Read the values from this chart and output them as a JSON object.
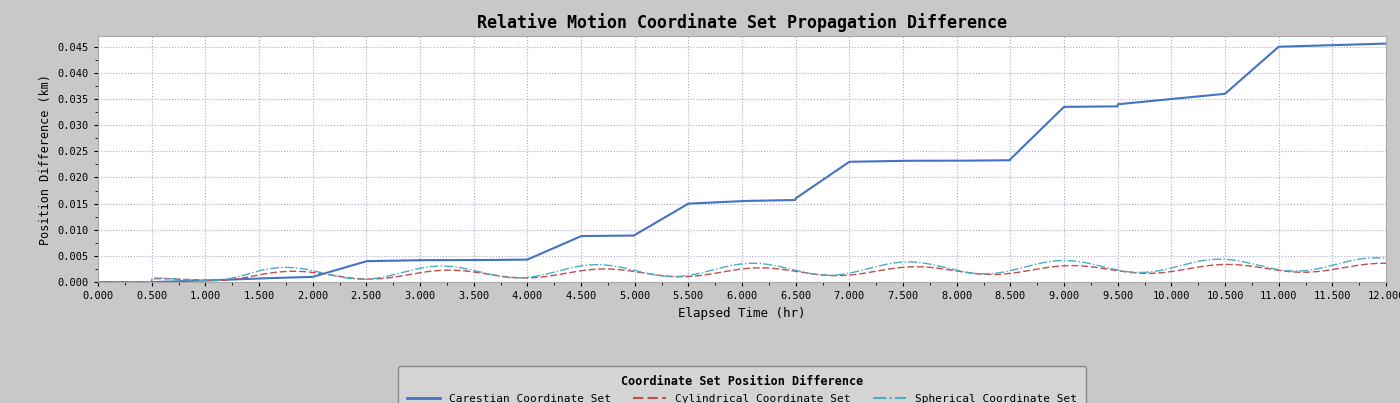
{
  "title": "Relative Motion Coordinate Set Propagation Difference",
  "xlabel": "Elapsed Time (hr)",
  "ylabel": "Position Difference (km)",
  "xlim": [
    0.0,
    12.0
  ],
  "ylim": [
    0.0,
    0.047
  ],
  "yticks": [
    0.0,
    0.005,
    0.01,
    0.015,
    0.02,
    0.025,
    0.03,
    0.035,
    0.04,
    0.045
  ],
  "xticks": [
    0.0,
    0.5,
    1.0,
    1.5,
    2.0,
    2.5,
    3.0,
    3.5,
    4.0,
    4.5,
    5.0,
    5.5,
    6.0,
    6.5,
    7.0,
    7.5,
    8.0,
    8.5,
    9.0,
    9.5,
    10.0,
    10.5,
    11.0,
    11.5,
    12.0
  ],
  "background_color": "#c8c8c8",
  "plot_bg_color": "#ffffff",
  "grid_color": "#aaaacc",
  "cartesian_color": "#4472c4",
  "cylindrical_color": "#c0504d",
  "spherical_color": "#4bacc6",
  "legend_title": "Coordinate Set Position Difference",
  "legend_labels": [
    "Carestian Coordinate Set",
    "Cylindrical Coordinate Set",
    "Spherical Coordinate Set"
  ]
}
